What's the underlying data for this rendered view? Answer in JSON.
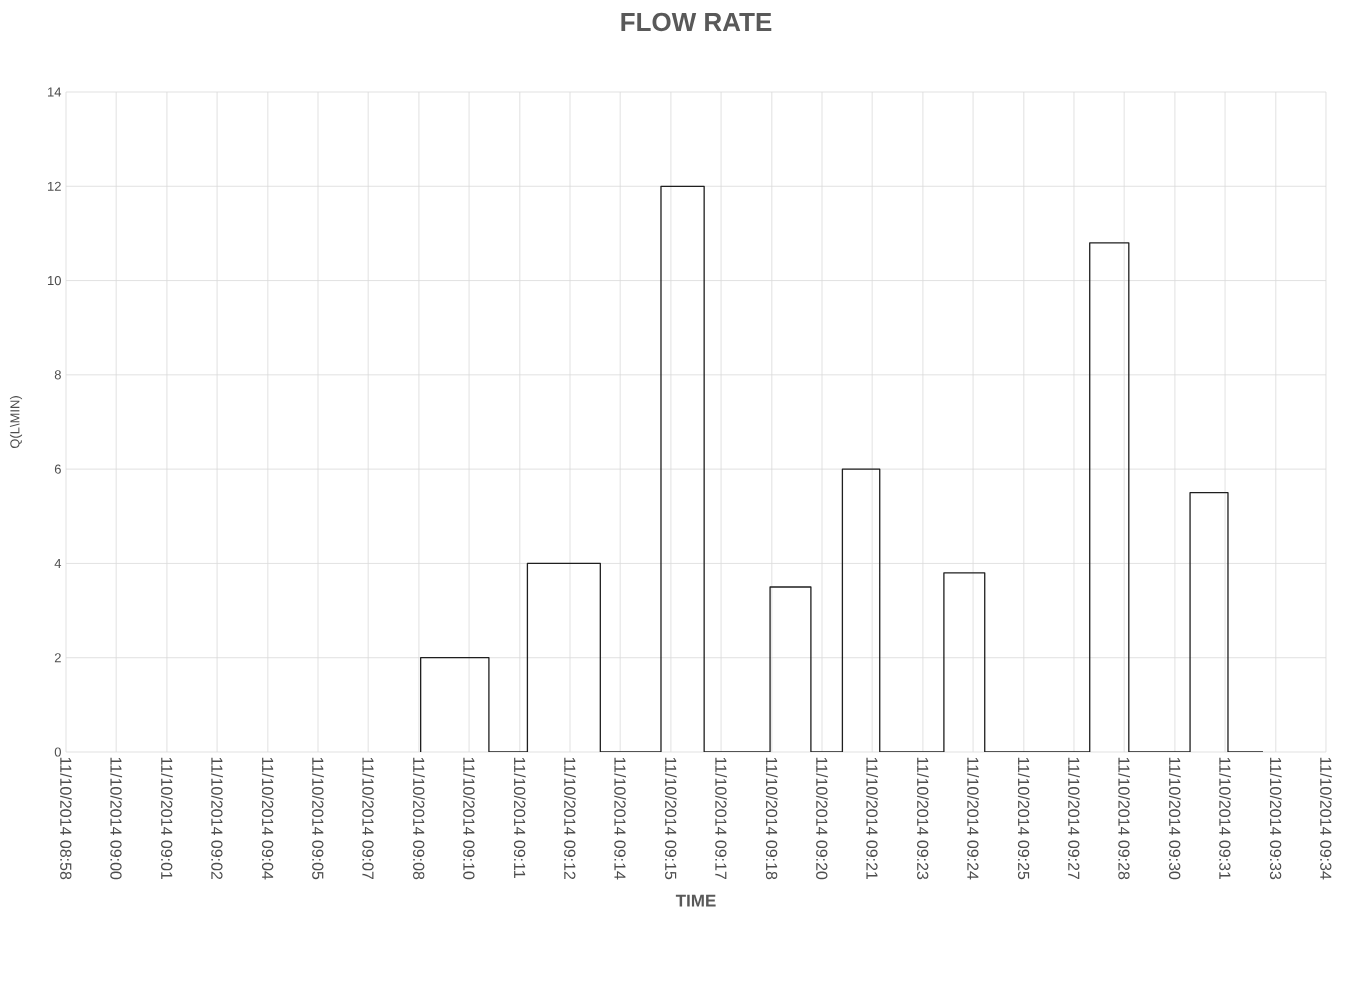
{
  "chart_data": {
    "type": "line",
    "title": "FLOW RATE",
    "xlabel": "TIME",
    "ylabel": "Q(L\\MIN)",
    "x": [
      "2014-11-10T09:08:08",
      "2014-11-10T09:08:08",
      "2014-11-10T09:10:05",
      "2014-11-10T09:10:05",
      "2014-11-10T09:11:11",
      "2014-11-10T09:11:11",
      "2014-11-10T09:13:16",
      "2014-11-10T09:13:16",
      "2014-11-10T09:15:00",
      "2014-11-10T09:15:00",
      "2014-11-10T09:16:14",
      "2014-11-10T09:16:14",
      "2014-11-10T09:18:07",
      "2014-11-10T09:18:07",
      "2014-11-10T09:19:17",
      "2014-11-10T09:19:17",
      "2014-11-10T09:20:11",
      "2014-11-10T09:20:11",
      "2014-11-10T09:21:15",
      "2014-11-10T09:21:15",
      "2014-11-10T09:23:05",
      "2014-11-10T09:23:05",
      "2014-11-10T09:24:15",
      "2014-11-10T09:24:15",
      "2014-11-10T09:27:15",
      "2014-11-10T09:27:15",
      "2014-11-10T09:28:22",
      "2014-11-10T09:28:22",
      "2014-11-10T09:30:07",
      "2014-11-10T09:30:07",
      "2014-11-10T09:31:12",
      "2014-11-10T09:31:12",
      "2014-11-10T09:32:12"
    ],
    "series": [
      {
        "color": "#1f1f1f",
        "values": [
          0,
          2,
          2,
          0,
          0,
          4,
          4,
          0,
          0,
          12,
          12,
          0,
          0,
          3.5,
          3.5,
          0,
          0,
          6,
          6,
          0,
          0,
          3.8,
          3.8,
          0,
          0,
          10.8,
          10.8,
          0,
          0,
          5.5,
          5.5,
          0,
          0
        ]
      }
    ],
    "xlim": [
      "2014-11-10T08:58:00",
      "2014-11-10T09:34:00"
    ],
    "xticks": [
      {
        "value": "2014-11-10T08:58:00",
        "label": "11/10/2014 08:58"
      },
      {
        "value": "2014-11-10T08:59:26",
        "label": "11/10/2014 09:00"
      },
      {
        "value": "2014-11-10T09:00:53",
        "label": "11/10/2014 09:01"
      },
      {
        "value": "2014-11-10T09:02:19",
        "label": "11/10/2014 09:02"
      },
      {
        "value": "2014-11-10T09:03:46",
        "label": "11/10/2014 09:04"
      },
      {
        "value": "2014-11-10T09:05:12",
        "label": "11/10/2014 09:05"
      },
      {
        "value": "2014-11-10T09:06:38",
        "label": "11/10/2014 09:07"
      },
      {
        "value": "2014-11-10T09:08:05",
        "label": "11/10/2014 09:08"
      },
      {
        "value": "2014-11-10T09:09:31",
        "label": "11/10/2014 09:10"
      },
      {
        "value": "2014-11-10T09:10:58",
        "label": "11/10/2014 09:11"
      },
      {
        "value": "2014-11-10T09:12:24",
        "label": "11/10/2014 09:12"
      },
      {
        "value": "2014-11-10T09:13:50",
        "label": "11/10/2014 09:14"
      },
      {
        "value": "2014-11-10T09:15:17",
        "label": "11/10/2014 09:15"
      },
      {
        "value": "2014-11-10T09:16:43",
        "label": "11/10/2014 09:17"
      },
      {
        "value": "2014-11-10T09:18:10",
        "label": "11/10/2014 09:18"
      },
      {
        "value": "2014-11-10T09:19:36",
        "label": "11/10/2014 09:20"
      },
      {
        "value": "2014-11-10T09:21:02",
        "label": "11/10/2014 09:21"
      },
      {
        "value": "2014-11-10T09:22:29",
        "label": "11/10/2014 09:23"
      },
      {
        "value": "2014-11-10T09:23:55",
        "label": "11/10/2014 09:24"
      },
      {
        "value": "2014-11-10T09:25:22",
        "label": "11/10/2014 09:25"
      },
      {
        "value": "2014-11-10T09:26:48",
        "label": "11/10/2014 09:27"
      },
      {
        "value": "2014-11-10T09:28:14",
        "label": "11/10/2014 09:28"
      },
      {
        "value": "2014-11-10T09:29:41",
        "label": "11/10/2014 09:30"
      },
      {
        "value": "2014-11-10T09:31:07",
        "label": "11/10/2014 09:31"
      },
      {
        "value": "2014-11-10T09:32:34",
        "label": "11/10/2014 09:33"
      },
      {
        "value": "2014-11-10T09:34:00",
        "label": "11/10/2014 09:34"
      }
    ],
    "ylim": [
      0,
      14
    ],
    "yticks": [
      0,
      2,
      4,
      6,
      8,
      10,
      12,
      14
    ],
    "grid": true,
    "marker": "none",
    "line_style": "solid"
  }
}
